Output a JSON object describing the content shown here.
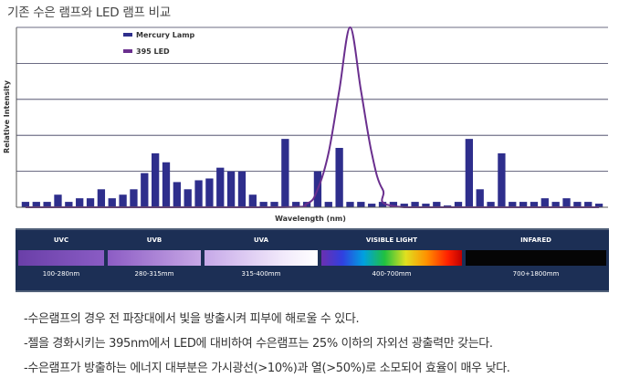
{
  "page": {
    "title": "기존 수은 램프와 LED 램프 비교"
  },
  "chart_data": {
    "type": "bar",
    "ylabel": "Relative Intensity",
    "xlabel": "Wavelength (nm)",
    "ylim": [
      0,
      1
    ],
    "grid": "horizontal",
    "legend_position": "top-left",
    "series": [
      {
        "name": "Mercury Lamp",
        "color": "#2e2e8c",
        "values": [
          0.03,
          0.03,
          0.03,
          0.07,
          0.03,
          0.05,
          0.05,
          0.1,
          0.05,
          0.07,
          0.1,
          0.19,
          0.3,
          0.25,
          0.14,
          0.1,
          0.15,
          0.16,
          0.22,
          0.2,
          0.2,
          0.07,
          0.03,
          0.03,
          0.38,
          0.03,
          0.03,
          0.2,
          0.03,
          0.33,
          0.03,
          0.03,
          0.02,
          0.03,
          0.03,
          0.02,
          0.03,
          0.02,
          0.03,
          0.01,
          0.03,
          0.38,
          0.1,
          0.03,
          0.3,
          0.03,
          0.03,
          0.03,
          0.05,
          0.03,
          0.05,
          0.03,
          0.03,
          0.02
        ]
      },
      {
        "name": "395 LED",
        "color": "#6a2f8e",
        "type": "line",
        "x": [
          0,
          23,
          26,
          27,
          28,
          29,
          30,
          31,
          32,
          33,
          35,
          53
        ],
        "values": [
          0,
          0,
          0.02,
          0.1,
          0.3,
          0.65,
          1.0,
          0.65,
          0.3,
          0.1,
          0,
          0
        ]
      }
    ]
  },
  "spectrum": [
    {
      "name": "UVC",
      "range": "100-280nm"
    },
    {
      "name": "UVB",
      "range": "280-315mm"
    },
    {
      "name": "UVA",
      "range": "315-400mm"
    },
    {
      "name": "VISIBLE LIGHT",
      "range": "400-700mm"
    },
    {
      "name": "INFARED",
      "range": "700+1800mm"
    }
  ],
  "notes": [
    "-수은램프의 경우 전 파장대에서  빛을 방출시켜 피부에 해로울 수 있다.",
    "-젤을 경화시키는 395nm에서  LED에  대비하여 수은램프는 25% 이하의 자외선 광출력만 갖는다.",
    "-수은램프가 방출하는 에너지 대부분은 가시광선(>10%)과 열(>50%)로 소모되어 효율이 매우 낮다."
  ]
}
